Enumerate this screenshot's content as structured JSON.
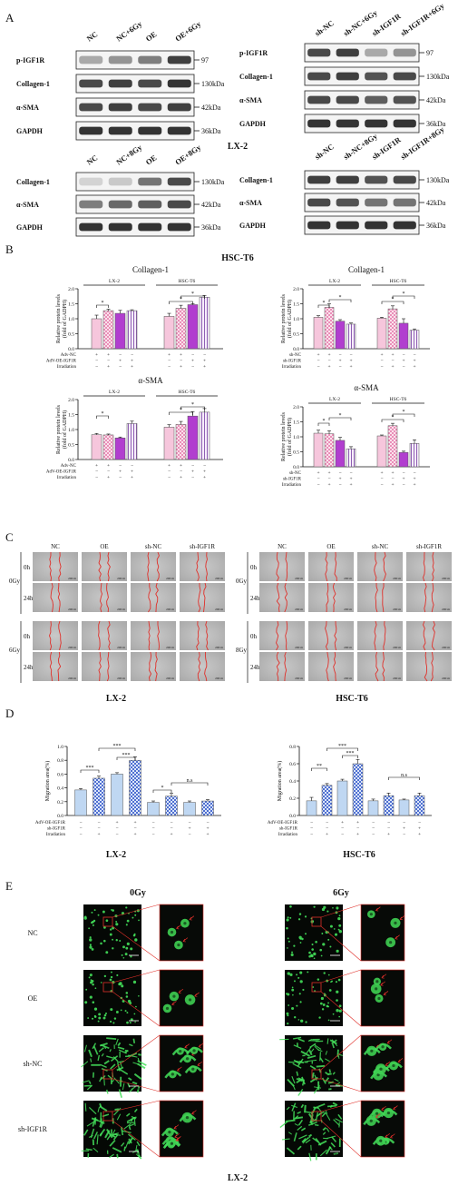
{
  "panel_letters": {
    "a": "A",
    "b": "B",
    "c": "C",
    "d": "D",
    "e": "E"
  },
  "colors": {
    "pink": "#f6c6dc",
    "pink_check": "#f2a2c6",
    "purple": "#b13ecf",
    "lilac": "#eadcf6",
    "blue_light": "#bfd7f2",
    "blue_check": "#5d7bd8",
    "gfp": "#44e05a",
    "wound_line": "#e0302a",
    "band": "#1e1e1e"
  },
  "panelA": {
    "left": {
      "lanes": [
        "NC",
        "NC+6Gy",
        "OE",
        "OE+6Gy"
      ],
      "rows": [
        {
          "label": "p-IGF1R",
          "size": "97"
        },
        {
          "label": "Collagen-1",
          "size": "130kDa"
        },
        {
          "label": "α-SMA",
          "size": "42kDa"
        },
        {
          "label": "GAPDH",
          "size": "36kDa"
        }
      ]
    },
    "right": {
      "lanes": [
        "sh-NC",
        "sh-NC+6Gy",
        "sh-IGF1R",
        "sh-IGF1R+6Gy"
      ],
      "rows": [
        {
          "label": "p-IGF1R",
          "size": "97"
        },
        {
          "label": "Collagen-1",
          "size": "130kDa"
        },
        {
          "label": "α-SMA",
          "size": "42kDa"
        },
        {
          "label": "GAPDH",
          "size": "36kDa"
        }
      ]
    },
    "lx2_label": "LX-2",
    "left_b": {
      "lanes": [
        "NC",
        "NC+8Gy",
        "OE",
        "OE+8Gy"
      ],
      "rows": [
        {
          "label": "Collagen-1",
          "size": "130kDa"
        },
        {
          "label": "α-SMA",
          "size": "42kDa"
        },
        {
          "label": "GAPDH",
          "size": "36kDa"
        }
      ]
    },
    "right_b": {
      "lanes": [
        "sh-NC",
        "sh-NC+8Gy",
        "sh-IGF1R",
        "sh-IGF1R+8Gy"
      ],
      "rows": [
        {
          "label": "Collagen-1",
          "size": "130kDa"
        },
        {
          "label": "α-SMA",
          "size": "42kDa"
        },
        {
          "label": "GAPDH",
          "size": "36kDa"
        }
      ]
    }
  },
  "panelB": {
    "center_label": "HSC-T6",
    "ylabel_line1": "Relative protein levels",
    "ylabel_line2": "(fold of GADPH)",
    "oe_rows": [
      "Adv-NC",
      "AdV-OE-IGF1R",
      "Irradiation"
    ],
    "sh_rows": [
      "sh-NC",
      "sh-IGF1R",
      "Irradiation"
    ],
    "oe_signs": [
      [
        "+",
        "+",
        "−",
        "−"
      ],
      [
        "−",
        "−",
        "+",
        "+"
      ],
      [
        "−",
        "+",
        "−",
        "+"
      ]
    ],
    "sh_signs": [
      [
        "+",
        "+",
        "−",
        "−"
      ],
      [
        "−",
        "−",
        "+",
        "+"
      ],
      [
        "−",
        "+",
        "−",
        "+"
      ]
    ]
  },
  "chart_data": [
    {
      "type": "bar",
      "title": "Collagen-1",
      "groups": [
        "LX-2",
        "HSC-T6"
      ],
      "values": [
        [
          1.0,
          1.27,
          1.18,
          1.27
        ],
        [
          1.08,
          1.35,
          1.47,
          1.72
        ]
      ],
      "errors": [
        [
          0.12,
          0.05,
          0.1,
          0.03
        ],
        [
          0.1,
          0.1,
          0.03,
          0.06
        ]
      ],
      "ylim": [
        0,
        2.0
      ],
      "yticks": [
        "0.0",
        "0.5",
        "1.0",
        "1.5",
        "2.0"
      ],
      "ylabel": "Relative protein levels (fold of GADPH)"
    },
    {
      "type": "bar",
      "title": "Collagen-1",
      "groups": [
        "LX-2",
        "HSC-T6"
      ],
      "values": [
        [
          1.05,
          1.38,
          0.92,
          0.82
        ],
        [
          1.02,
          1.33,
          0.85,
          0.62
        ]
      ],
      "errors": [
        [
          0.05,
          0.12,
          0.05,
          0.04
        ],
        [
          0.03,
          0.1,
          0.15,
          0.04
        ]
      ],
      "ylim": [
        0,
        2.0
      ],
      "yticks": [
        "0.0",
        "0.5",
        "1.0",
        "1.5",
        "2.0"
      ],
      "ylabel": "Relative protein levels (fold of GADPH)"
    },
    {
      "type": "bar",
      "title": "α-SMA",
      "groups": [
        "LX-2",
        "HSC-T6"
      ],
      "values": [
        [
          0.83,
          0.82,
          0.72,
          1.2
        ],
        [
          1.08,
          1.17,
          1.45,
          1.58
        ]
      ],
      "errors": [
        [
          0.04,
          0.03,
          0.03,
          0.08
        ],
        [
          0.08,
          0.1,
          0.15,
          0.12
        ]
      ],
      "ylim": [
        0,
        2.0
      ],
      "yticks": [
        "0.0",
        "0.5",
        "1.0",
        "1.5",
        "2.0"
      ],
      "ylabel": "Relative protein levels (fold of GADPH)"
    },
    {
      "type": "bar",
      "title": "α-SMA",
      "groups": [
        "LX-2",
        "HSC-T6"
      ],
      "values": [
        [
          1.12,
          1.1,
          0.88,
          0.6
        ],
        [
          1.03,
          1.37,
          0.48,
          0.78
        ]
      ],
      "errors": [
        [
          0.1,
          0.1,
          0.1,
          0.07
        ],
        [
          0.03,
          0.08,
          0.04,
          0.12
        ]
      ],
      "ylim": [
        0,
        2.0
      ],
      "yticks": [
        "0.0",
        "0.5",
        "1.0",
        "1.5",
        "2.0"
      ],
      "ylabel": "Relative protein levels (fold of GADPH)"
    },
    {
      "type": "bar",
      "title": "",
      "groups": [
        "LX-2"
      ],
      "values": [
        [
          0.37,
          0.54,
          0.6,
          0.8,
          0.19,
          0.28,
          0.19,
          0.21
        ]
      ],
      "errors": [
        [
          0.02,
          0.03,
          0.02,
          0.05,
          0.02,
          0.04,
          0.02,
          0.02
        ]
      ],
      "ylim": [
        0,
        1.0
      ],
      "yticks": [
        "0.0",
        "0.2",
        "0.4",
        "0.6",
        "0.8",
        "1.0"
      ],
      "ylabel": "Migration area(%)"
    },
    {
      "type": "bar",
      "title": "",
      "groups": [
        "HSC-T6"
      ],
      "values": [
        [
          0.17,
          0.35,
          0.4,
          0.6,
          0.17,
          0.23,
          0.18,
          0.23
        ]
      ],
      "errors": [
        [
          0.04,
          0.02,
          0.02,
          0.05,
          0.02,
          0.03,
          0.01,
          0.03
        ]
      ],
      "ylim": [
        0,
        0.8
      ],
      "yticks": [
        "0.0",
        "0.2",
        "0.4",
        "0.6",
        "0.8"
      ],
      "ylabel": "Migration area(%)"
    }
  ],
  "panelD": {
    "rows": [
      "AdV-OE-IGF1R",
      "sh-IGF1R",
      "Irradiation"
    ],
    "signs": [
      [
        "−",
        "−",
        "+",
        "+",
        "−",
        "−",
        "−",
        "−"
      ],
      [
        "−",
        "−",
        "−",
        "−",
        "−",
        "−",
        "+",
        "+"
      ],
      [
        "−",
        "+",
        "−",
        "+",
        "−",
        "+",
        "−",
        "+"
      ]
    ],
    "label_left": "LX-2",
    "label_right": "HSC-T6",
    "sig_left": [
      "***",
      "***",
      "***",
      "*",
      "n.s"
    ],
    "sig_right": [
      "**",
      "***",
      "***",
      "n.s"
    ]
  },
  "panelC": {
    "cols": [
      "NC",
      "OE",
      "sh-NC",
      "sh-IGF1R"
    ],
    "times": [
      "0h",
      "24h"
    ],
    "dose_left_top": "0Gy",
    "dose_left_bottom": "6Gy",
    "dose_right_top": "0Gy",
    "dose_right_bottom": "8Gy",
    "scale": "200 m",
    "label_left": "LX-2",
    "label_right": "HSC-T6"
  },
  "panelE": {
    "col_0": "0Gy",
    "col_6": "6Gy",
    "rows": [
      "NC",
      "OE",
      "sh-NC",
      "sh-IGF1R"
    ],
    "scale": "40 m",
    "label": "LX-2"
  }
}
